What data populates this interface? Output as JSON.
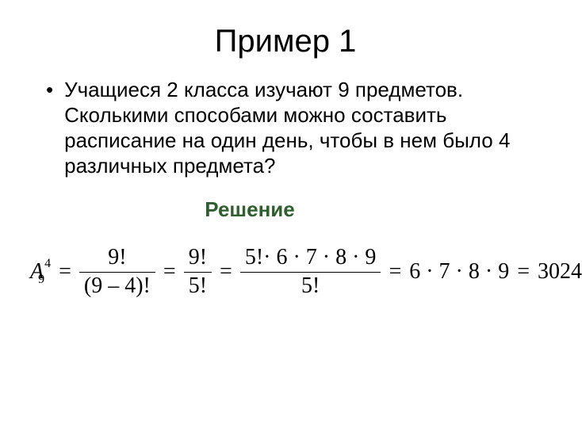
{
  "title": "Пример 1",
  "bullet_char": "•",
  "problem": "Учащиеся 2 класса изучают 9 предметов. Сколькими способами можно составить расписание на один день, чтобы в нем было 4 различных предмета?",
  "solution_label": "Решение",
  "formula": {
    "symbol": "A",
    "sup": "4",
    "sub": "9",
    "f1_num": "9!",
    "f1_den": "(9 – 4)!",
    "f2_num": "9!",
    "f2_den": "5!",
    "f3_num": "5!· 6 · 7 · 8 · 9",
    "f3_den": "5!",
    "rhs1": "6 · 7 · 8 · 9",
    "result": "3024"
  },
  "colors": {
    "title": "#000000",
    "text": "#000000",
    "solution": "#2f5f2f",
    "background": "#ffffff"
  },
  "fontsizes": {
    "title": 40,
    "body": 26,
    "formula": 28
  }
}
